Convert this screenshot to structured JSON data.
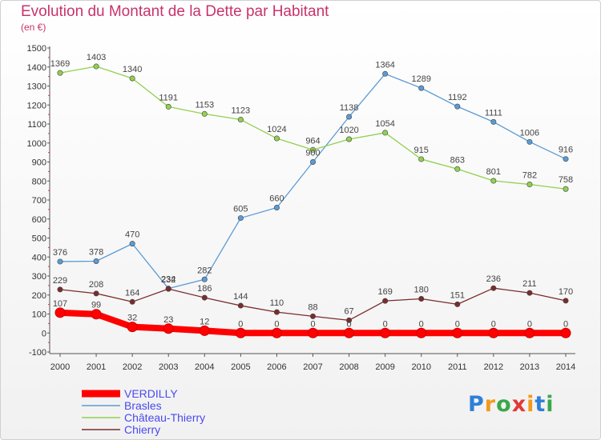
{
  "header": {
    "title": "Evolution du Montant de la Dette par Habitant",
    "unit": "(en €)"
  },
  "logo": {
    "text": "Proxiti",
    "colors": [
      "#2f7fd8",
      "#f29a1c",
      "#3aa84a",
      "#e03a3a",
      "#f29a1c",
      "#2f7fd8",
      "#3aa84a"
    ]
  },
  "chart_data": {
    "type": "line",
    "title": "Evolution du Montant de la Dette par Habitant",
    "ylabel": "(en €)",
    "xlabel": "",
    "ylim": [
      -100,
      1500
    ],
    "yticks": [
      -100,
      0,
      100,
      200,
      300,
      400,
      500,
      600,
      700,
      800,
      900,
      1000,
      1100,
      1200,
      1300,
      1400,
      1500
    ],
    "categories": [
      "2000",
      "2001",
      "2002",
      "2003",
      "2004",
      "2005",
      "2006",
      "2007",
      "2008",
      "2009",
      "2010",
      "2011",
      "2012",
      "2013",
      "2014"
    ],
    "grid": false,
    "legend_position": "bottom-left",
    "series": [
      {
        "name": "VERDILLY",
        "color": "#ff0000",
        "values": [
          107,
          99,
          32,
          23,
          12,
          0,
          0,
          0,
          0,
          0,
          0,
          0,
          0,
          0,
          0
        ]
      },
      {
        "name": "Brasles",
        "color": "#5b9bd5",
        "values": [
          376,
          378,
          470,
          234,
          282,
          605,
          660,
          900,
          1138,
          1364,
          1289,
          1192,
          1111,
          1006,
          916
        ]
      },
      {
        "name": "Château-Thierry",
        "color": "#92d050",
        "values": [
          1369,
          1403,
          1340,
          1191,
          1153,
          1123,
          1024,
          964,
          1020,
          1054,
          915,
          863,
          801,
          782,
          758
        ]
      },
      {
        "name": "Chierry",
        "color": "#7b2c2c",
        "values": [
          229,
          208,
          164,
          232,
          186,
          144,
          110,
          88,
          67,
          169,
          180,
          151,
          236,
          211,
          170
        ]
      }
    ]
  }
}
